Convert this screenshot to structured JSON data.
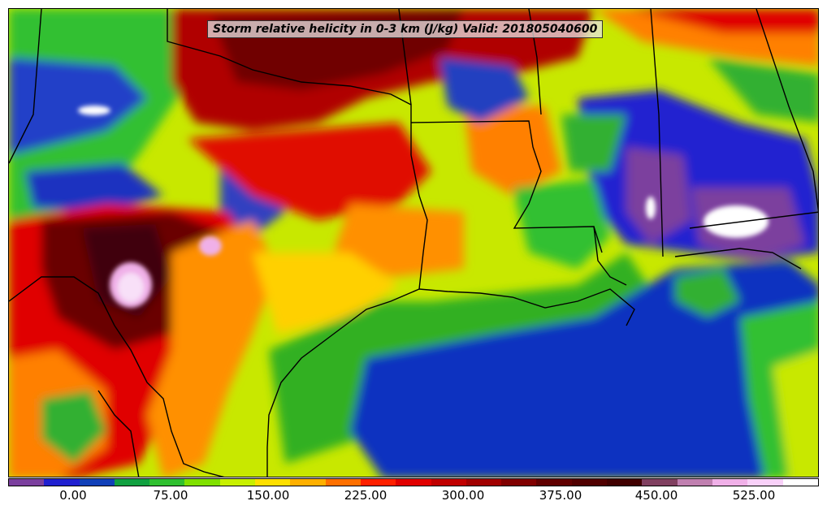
{
  "title": "Storm relative helicity in 0-3 km (J/kg) Valid: 201805040600",
  "colorbar": {
    "colors": [
      "#7b3f9e",
      "#2020d0",
      "#1040b8",
      "#10a040",
      "#30c030",
      "#80e000",
      "#c8f000",
      "#ffe000",
      "#ffb000",
      "#ff7000",
      "#ff2000",
      "#e00000",
      "#c00000",
      "#a00000",
      "#800000",
      "#600000",
      "#500000",
      "#400000",
      "#804060",
      "#c080b0",
      "#f0b0e8",
      "#f8d0f8",
      "#ffffff"
    ],
    "ticks": [
      "0.00",
      "75.00",
      "150.00",
      "225.00",
      "300.00",
      "375.00",
      "450.00",
      "525.00"
    ]
  },
  "field_colors": {
    "ocean_low": "#1030c0",
    "ocean_mid": "#30b020",
    "land_yellow": "#c8e800",
    "dark_red": "#7a0000",
    "red": "#e00000",
    "orange": "#ff8000",
    "violet": "#8040a0",
    "pink": "#f0c0f0"
  }
}
